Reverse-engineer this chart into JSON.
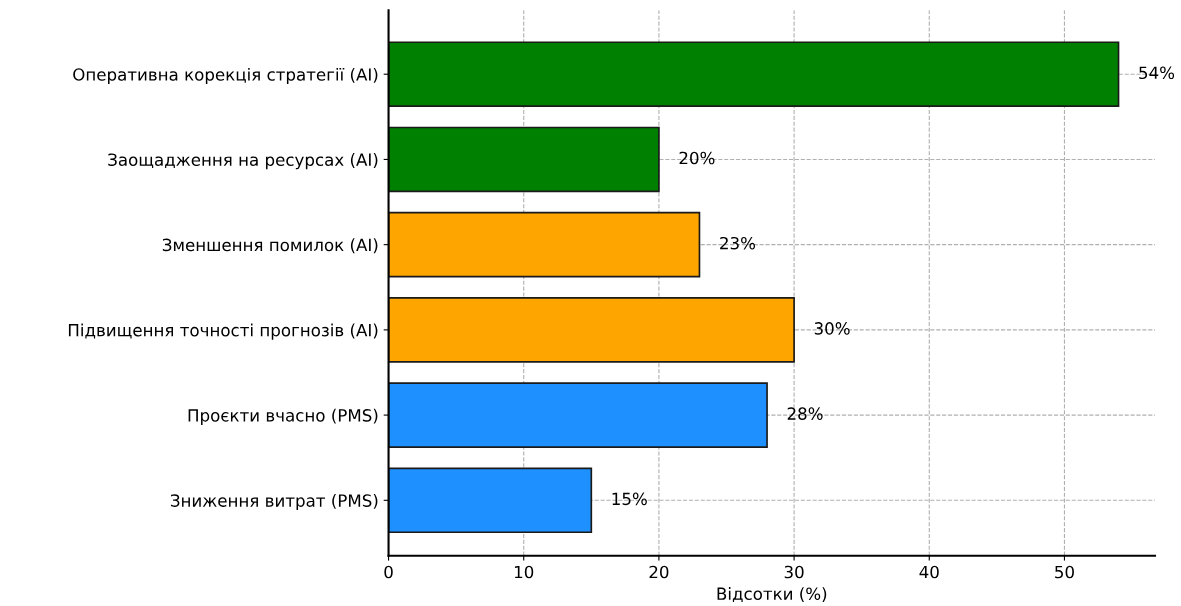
{
  "chart_data": {
    "type": "bar",
    "orientation": "horizontal",
    "xlabel": "Відсотки (%)",
    "categories": [
      "Оперативна корекція стратегії (AI)",
      "Заощадження на ресурсах (AI)",
      "Зменшення помилок (AI)",
      "Підвищення точності прогнозів (AI)",
      "Проєкти вчасно (PMS)",
      "Зниження витрат (PMS)"
    ],
    "values": [
      54,
      20,
      23,
      30,
      28,
      15
    ],
    "colors": [
      "#008000",
      "#008000",
      "#ffa500",
      "#ffa500",
      "#1e90ff",
      "#1e90ff"
    ],
    "value_labels": [
      "54%",
      "20%",
      "23%",
      "30%",
      "28%",
      "15%"
    ],
    "xlim": [
      0,
      56.7
    ],
    "xticks": [
      0,
      10,
      20,
      30,
      40,
      50
    ],
    "grid": true
  }
}
